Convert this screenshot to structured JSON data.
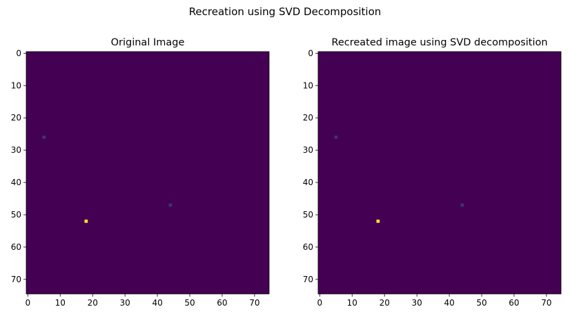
{
  "figure": {
    "suptitle": "Recreation using SVD Decomposition"
  },
  "chart_data": [
    {
      "type": "heatmap",
      "title": "Original Image",
      "xlabel": "",
      "ylabel": "",
      "grid": false,
      "xlim": [
        -0.5,
        74.5
      ],
      "ylim": [
        74.5,
        -0.5
      ],
      "xticks": [
        0,
        10,
        20,
        30,
        40,
        50,
        60,
        70
      ],
      "yticks": [
        0,
        10,
        20,
        30,
        40,
        50,
        60,
        70
      ],
      "background_value": 0,
      "cells": [
        {
          "x": 5,
          "y": 26,
          "value": 0.25
        },
        {
          "x": 44,
          "y": 47,
          "value": 0.25
        },
        {
          "x": 18,
          "y": 52,
          "value": 1.0
        }
      ],
      "colormap": "viridis",
      "colors": {
        "low": "#440154",
        "mid": "#31688e",
        "high": "#fde725"
      }
    },
    {
      "type": "heatmap",
      "title": "Recreated image using SVD decomposition",
      "xlabel": "",
      "ylabel": "",
      "grid": false,
      "xlim": [
        -0.5,
        74.5
      ],
      "ylim": [
        74.5,
        -0.5
      ],
      "xticks": [
        0,
        10,
        20,
        30,
        40,
        50,
        60,
        70
      ],
      "yticks": [
        0,
        10,
        20,
        30,
        40,
        50,
        60,
        70
      ],
      "background_value": 0,
      "cells": [
        {
          "x": 5,
          "y": 26,
          "value": 0.25
        },
        {
          "x": 44,
          "y": 47,
          "value": 0.25
        },
        {
          "x": 18,
          "y": 52,
          "value": 1.0
        }
      ],
      "colormap": "viridis",
      "colors": {
        "low": "#440154",
        "mid": "#31688e",
        "high": "#fde725"
      }
    }
  ]
}
